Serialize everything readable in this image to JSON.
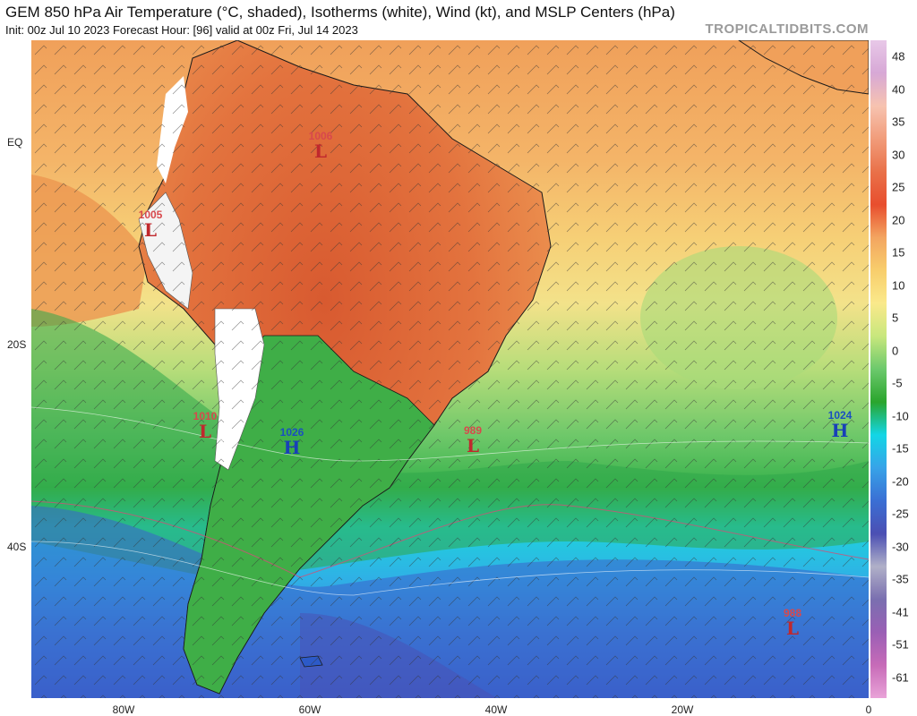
{
  "header": {
    "title": "GEM 850 hPa Air Temperature (°C, shaded), Isotherms (white), Wind (kt), and MSLP Centers (hPa)",
    "subtitle": "Init: 00z Jul 10 2023   Forecast Hour: [96]   valid at 00z Fri, Jul 14 2023",
    "brand": "TROPICALTIDBITS.COM"
  },
  "axes": {
    "lat_labels": [
      "EQ",
      "20S",
      "40S"
    ],
    "lon_labels": [
      "80W",
      "60W",
      "40W",
      "20W",
      "0"
    ]
  },
  "colorbar": {
    "labels": [
      "48",
      "40",
      "35",
      "30",
      "25",
      "20",
      "15",
      "10",
      "5",
      "0",
      "-5",
      "-10",
      "-15",
      "-20",
      "-25",
      "-30",
      "-35",
      "-41",
      "-51",
      "-61"
    ],
    "colors": [
      "#e8c8e8",
      "#d7a8d6",
      "#f7c3b0",
      "#f19c7a",
      "#e97149",
      "#e84e2e",
      "#f3a560",
      "#f8ce6c",
      "#fae98b",
      "#c8e77d",
      "#6cc96c",
      "#2aa52d",
      "#13d6e6",
      "#37a3e8",
      "#3a6fd4",
      "#4b4fb3",
      "#b0b0c8",
      "#7a6fb0",
      "#9a5fb5",
      "#c76bb8",
      "#e9a3d8"
    ]
  },
  "pressure_centers": [
    {
      "type": "L",
      "value": "1006"
    },
    {
      "type": "L",
      "value": "1005"
    },
    {
      "type": "L",
      "value": "1010"
    },
    {
      "type": "H",
      "value": "1026"
    },
    {
      "type": "L",
      "value": "989"
    },
    {
      "type": "H",
      "value": "1024"
    },
    {
      "type": "L",
      "value": "988"
    }
  ]
}
